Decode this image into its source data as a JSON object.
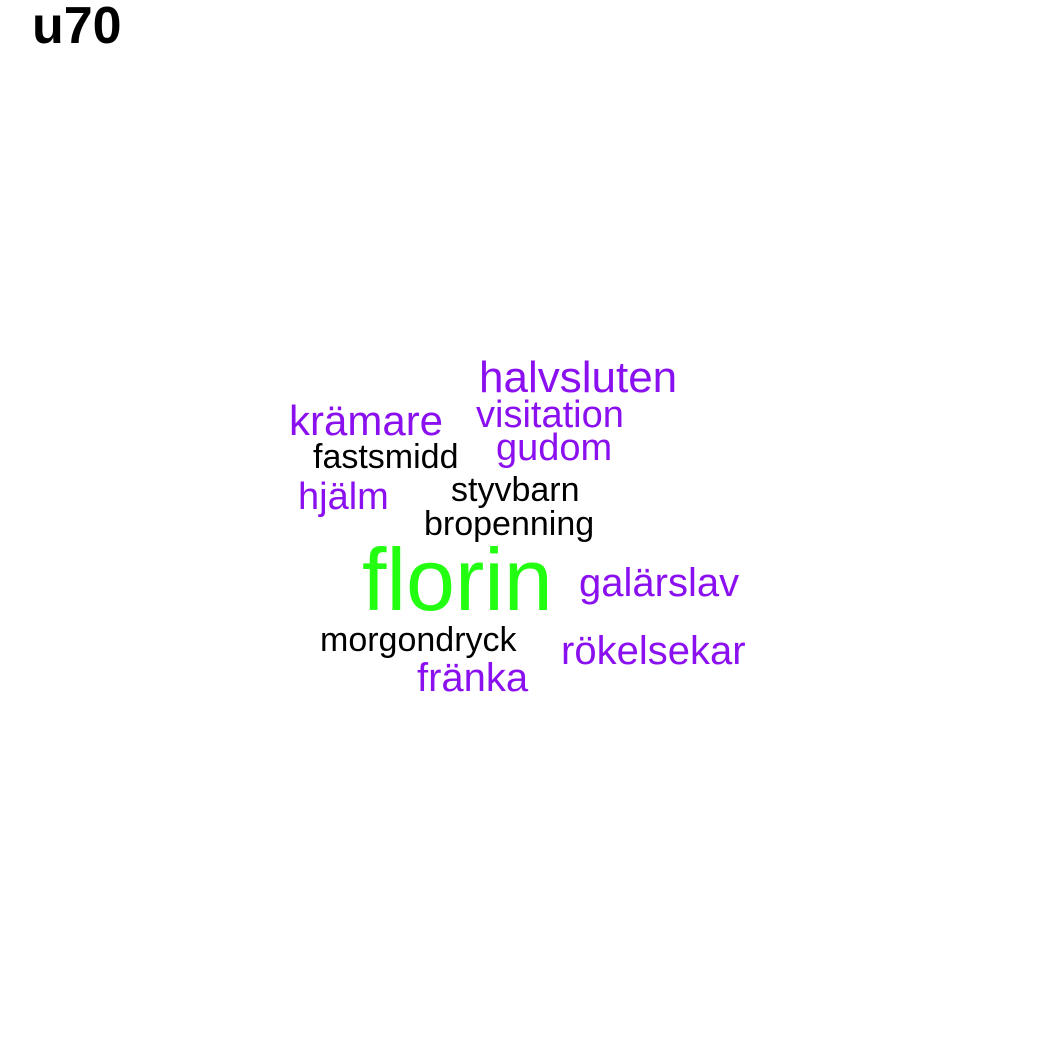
{
  "title": "u70",
  "colors": {
    "black": "#000000",
    "purple": "#8b10f0",
    "green": "#22ff11"
  },
  "words": [
    {
      "text": "halvsluten",
      "color": "purple"
    },
    {
      "text": "krämare",
      "color": "purple"
    },
    {
      "text": "visitation",
      "color": "purple"
    },
    {
      "text": "fastsmidd",
      "color": "black"
    },
    {
      "text": "gudom",
      "color": "purple"
    },
    {
      "text": "hjälm",
      "color": "purple"
    },
    {
      "text": "styvbarn",
      "color": "black"
    },
    {
      "text": "bropenning",
      "color": "black"
    },
    {
      "text": "florin",
      "color": "green"
    },
    {
      "text": "galärslav",
      "color": "purple"
    },
    {
      "text": "morgondryck",
      "color": "black"
    },
    {
      "text": "rökelsekar",
      "color": "purple"
    },
    {
      "text": "fränka",
      "color": "purple"
    }
  ]
}
